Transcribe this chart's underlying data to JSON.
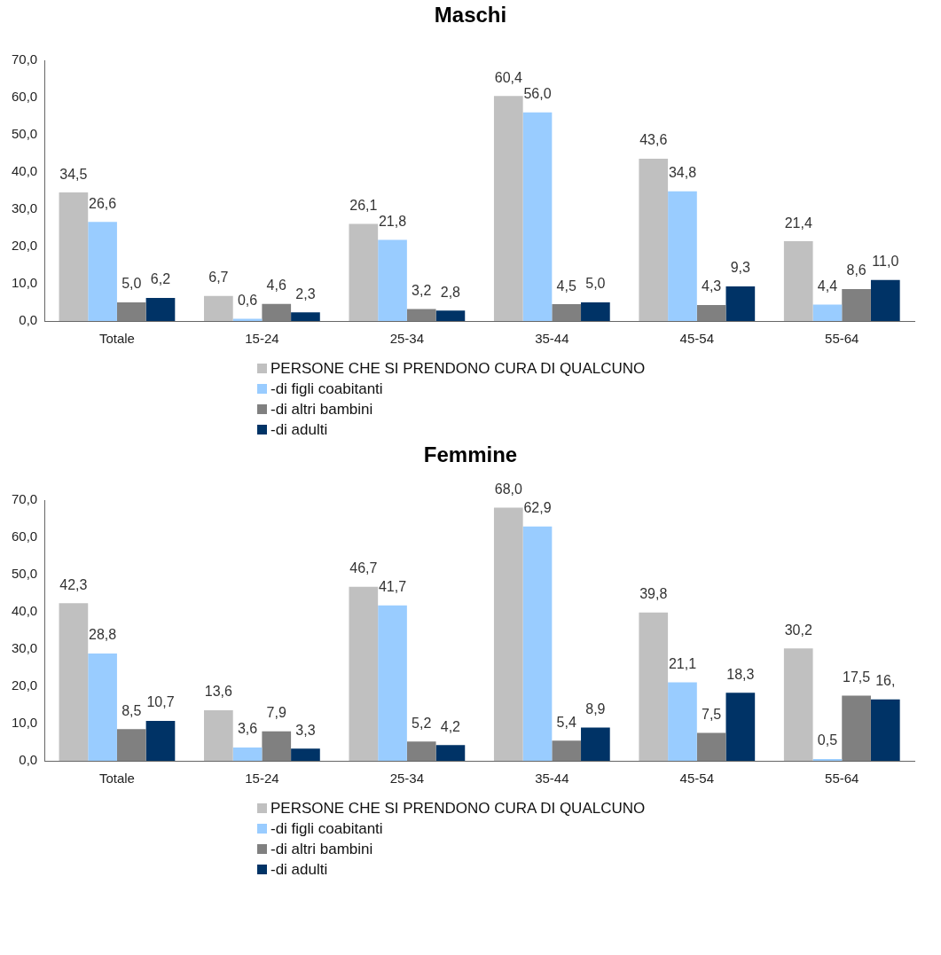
{
  "chart_data": [
    {
      "type": "bar",
      "title": "Maschi",
      "categories": [
        "Totale",
        "15-24",
        "25-34",
        "35-44",
        "45-54",
        "55-64"
      ],
      "series": [
        {
          "name": "PERSONE CHE SI PRENDONO CURA DI QUALCUNO",
          "color": "#c0c0c0",
          "values": [
            34.5,
            6.7,
            26.1,
            60.4,
            43.6,
            21.4
          ],
          "value_labels": [
            "34,5",
            "6,7",
            "26,1",
            "60,4",
            "43,6",
            "21,4"
          ]
        },
        {
          "name": "-di figli coabitanti",
          "color": "#99ccff",
          "values": [
            26.6,
            0.6,
            21.8,
            56.0,
            34.8,
            4.4
          ],
          "value_labels": [
            "26,6",
            "0,6",
            "21,8",
            "56,0",
            "34,8",
            "4,4"
          ]
        },
        {
          "name": "-di altri bambini",
          "color": "#808080",
          "values": [
            5.0,
            4.6,
            3.2,
            4.5,
            4.3,
            8.6
          ],
          "value_labels": [
            "5,0",
            "4,6",
            "3,2",
            "4,5",
            "4,3",
            "8,6"
          ]
        },
        {
          "name": "-di adulti",
          "color": "#003366",
          "values": [
            6.2,
            2.3,
            2.8,
            5.0,
            9.3,
            11.0
          ],
          "value_labels": [
            "6,2",
            "2,3",
            "2,8",
            "5,0",
            "9,3",
            "11,0"
          ]
        }
      ],
      "ylim": [
        0,
        70
      ],
      "yticks": [
        {
          "value": 0,
          "label": "0,0"
        },
        {
          "value": 10,
          "label": "10,0"
        },
        {
          "value": 20,
          "label": "20,0"
        },
        {
          "value": 30,
          "label": "30,0"
        },
        {
          "value": 40,
          "label": "40,0"
        },
        {
          "value": 50,
          "label": "50,0"
        },
        {
          "value": 60,
          "label": "60,0"
        },
        {
          "value": 70,
          "label": "70,0"
        }
      ],
      "grid": false,
      "legend": "bottom"
    },
    {
      "type": "bar",
      "title": "Femmine",
      "categories": [
        "Totale",
        "15-24",
        "25-34",
        "35-44",
        "45-54",
        "55-64"
      ],
      "series": [
        {
          "name": "PERSONE CHE SI PRENDONO CURA DI QUALCUNO",
          "color": "#c0c0c0",
          "values": [
            42.3,
            13.6,
            46.7,
            68.0,
            39.8,
            30.2
          ],
          "value_labels": [
            "42,3",
            "13,6",
            "46,7",
            "68,0",
            "39,8",
            "30,2"
          ]
        },
        {
          "name": "-di figli coabitanti",
          "color": "#99ccff",
          "values": [
            28.8,
            3.6,
            41.7,
            62.9,
            21.1,
            0.5
          ],
          "value_labels": [
            "28,8",
            "3,6",
            "41,7",
            "62,9",
            "21,1",
            "0,5"
          ]
        },
        {
          "name": "-di altri bambini",
          "color": "#808080",
          "values": [
            8.5,
            7.9,
            5.2,
            5.4,
            7.5,
            17.5
          ],
          "value_labels": [
            "8,5",
            "7,9",
            "5,2",
            "5,4",
            "7,5",
            "17,5"
          ]
        },
        {
          "name": "-di adulti",
          "color": "#003366",
          "values": [
            10.7,
            3.3,
            4.2,
            8.9,
            18.3,
            16.5
          ],
          "value_labels": [
            "10,7",
            "3,3",
            "4,2",
            "8,9",
            "18,3",
            "16,"
          ]
        }
      ],
      "ylim": [
        0,
        70
      ],
      "yticks": [
        {
          "value": 0,
          "label": "0,0"
        },
        {
          "value": 10,
          "label": "10,0"
        },
        {
          "value": 20,
          "label": "20,0"
        },
        {
          "value": 30,
          "label": "30,0"
        },
        {
          "value": 40,
          "label": "40,0"
        },
        {
          "value": 50,
          "label": "50,0"
        },
        {
          "value": 60,
          "label": "60,0"
        },
        {
          "value": 70,
          "label": "70,0"
        }
      ],
      "grid": false,
      "legend": "bottom"
    }
  ]
}
